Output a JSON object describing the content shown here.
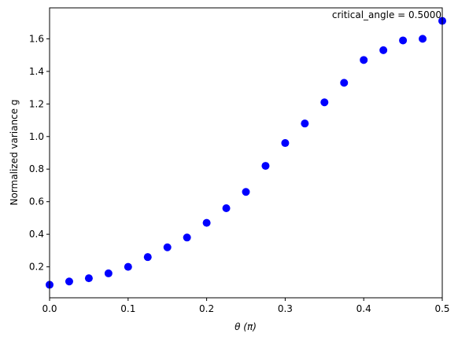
{
  "chart_data": {
    "type": "scatter",
    "xlabel": "θ (π)",
    "ylabel": "Normalized variance g",
    "xlim": [
      0.0,
      0.5
    ],
    "ylim": [
      0.01,
      1.79
    ],
    "xticks": [
      0.0,
      0.1,
      0.2,
      0.3,
      0.4,
      0.5
    ],
    "xtick_labels": [
      "0.0",
      "0.1",
      "0.2",
      "0.3",
      "0.4",
      "0.5"
    ],
    "yticks": [
      0.2,
      0.4,
      0.6,
      0.8,
      1.0,
      1.2,
      1.4,
      1.6
    ],
    "ytick_labels": [
      "0.2",
      "0.4",
      "0.6",
      "0.8",
      "1.0",
      "1.2",
      "1.4",
      "1.6"
    ],
    "grid": false,
    "annotation": "critical_angle = 0.5000",
    "marker_color": "#0000ff",
    "series": [
      {
        "x": [
          0.0,
          0.025,
          0.05,
          0.075,
          0.1,
          0.125,
          0.15,
          0.175,
          0.2,
          0.225,
          0.25,
          0.275,
          0.3,
          0.325,
          0.35,
          0.375,
          0.4,
          0.425,
          0.45,
          0.475,
          0.5
        ],
        "y": [
          0.09,
          0.11,
          0.13,
          0.16,
          0.2,
          0.26,
          0.32,
          0.38,
          0.47,
          0.56,
          0.66,
          0.82,
          0.96,
          1.08,
          1.21,
          1.33,
          1.47,
          1.53,
          1.59,
          1.6,
          1.71
        ]
      }
    ]
  }
}
